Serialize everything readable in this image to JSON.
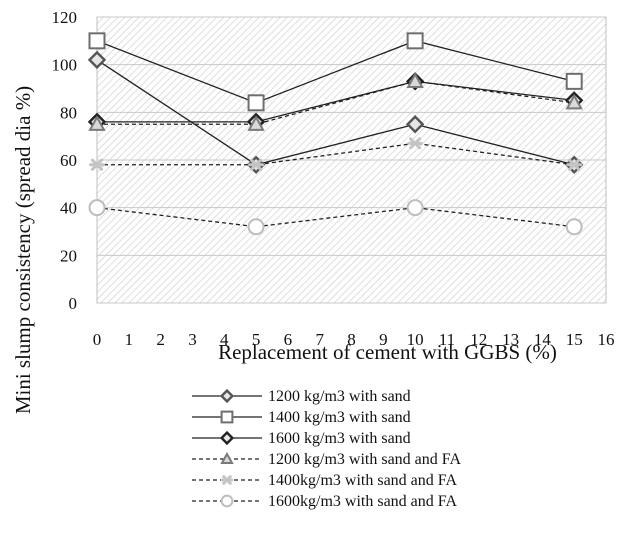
{
  "chart_data": {
    "type": "line",
    "title": "",
    "xlabel": "Replacement of cement with GGBS (%)",
    "ylabel": "Mini slump consistency (spread dia %)",
    "xlim": [
      0,
      16
    ],
    "ylim": [
      0,
      120
    ],
    "xticks": [
      0,
      1,
      2,
      3,
      4,
      5,
      6,
      7,
      8,
      9,
      10,
      11,
      12,
      13,
      14,
      15,
      16
    ],
    "yticks": [
      0,
      20,
      40,
      60,
      80,
      100,
      120
    ],
    "grid": true,
    "legend_position": "bottom",
    "x": [
      0,
      5,
      10,
      15
    ],
    "series": [
      {
        "name": "1200 kg/m3 with sand",
        "values": [
          102,
          58,
          75,
          58
        ],
        "marker": "diamond-open",
        "line": "solid",
        "color": "#555555"
      },
      {
        "name": "1400 kg/m3 with sand",
        "values": [
          110,
          84,
          110,
          93
        ],
        "marker": "square-open",
        "line": "solid",
        "color": "#6e6e6e"
      },
      {
        "name": "1600 kg/m3 with sand",
        "values": [
          76,
          76,
          93,
          85
        ],
        "marker": "diamond-open",
        "line": "solid",
        "color": "#222222"
      },
      {
        "name": "1200 kg/m3 with sand and FA",
        "values": [
          75,
          75,
          93,
          84
        ],
        "marker": "triangle",
        "line": "dashed",
        "color": "#7a7a7a"
      },
      {
        "name": "1400kg/m3 with sand and FA",
        "values": [
          58,
          58,
          67,
          58
        ],
        "marker": "star",
        "line": "dashed",
        "color": "#c4c4c4"
      },
      {
        "name": "1600kg/m3 with sand and FA",
        "values": [
          40,
          32,
          40,
          32
        ],
        "marker": "circle-open",
        "line": "dashed",
        "color": "#bdbdbd"
      }
    ]
  }
}
